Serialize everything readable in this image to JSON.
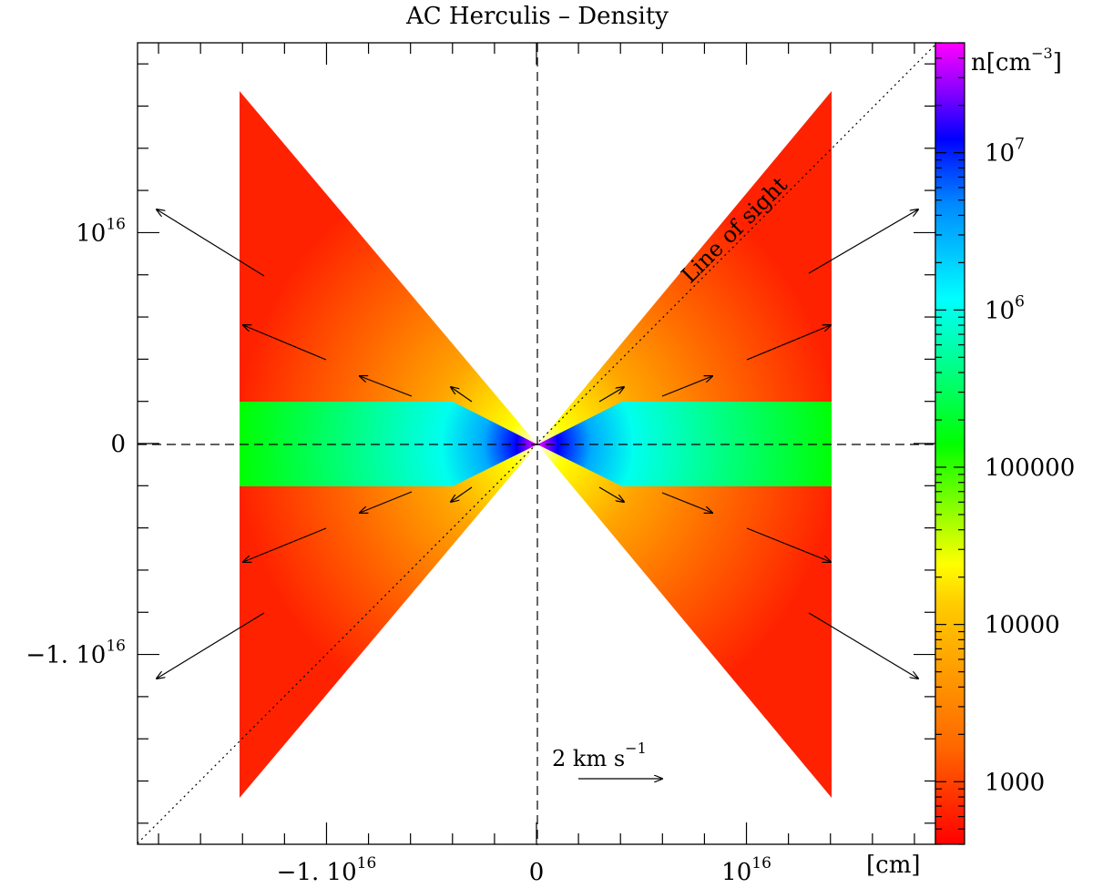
{
  "chart_data": {
    "type": "heatmap",
    "title": "AC Herculis – Density",
    "xlabel": "[cm]",
    "x_ticks": [
      {
        "value": -1e+16,
        "base": "−1. 10",
        "exp": "16"
      },
      {
        "value": 0,
        "base": "0",
        "exp": ""
      },
      {
        "value": 1e+16,
        "base": "10",
        "exp": "16"
      }
    ],
    "y_ticks": [
      {
        "value": 1e+16,
        "base": "10",
        "exp": "16"
      },
      {
        "value": 0,
        "base": "0",
        "exp": ""
      },
      {
        "value": -1e+16,
        "base": "−1. 10",
        "exp": "16"
      }
    ],
    "xlim": [
      -1.9e+16,
      1.9e+16
    ],
    "ylim": [
      -1.9e+16,
      1.9e+16
    ],
    "colorbar": {
      "label_base": "n[cm",
      "label_exp": "−3",
      "label_end": "]",
      "scale": "log",
      "range": [
        400,
        50000000
      ],
      "ticks": [
        {
          "value": 1000,
          "base": "1000",
          "exp": ""
        },
        {
          "value": 10000,
          "base": "10000",
          "exp": ""
        },
        {
          "value": 100000,
          "base": "100000",
          "exp": ""
        },
        {
          "value": 1000000,
          "base": "10",
          "exp": "6"
        },
        {
          "value": 10000000,
          "base": "10",
          "exp": "7"
        }
      ]
    },
    "annotations": {
      "line_of_sight": "Line of sight",
      "velocity_scale_base": "2  km  s",
      "velocity_scale_exp": "−1"
    }
  }
}
